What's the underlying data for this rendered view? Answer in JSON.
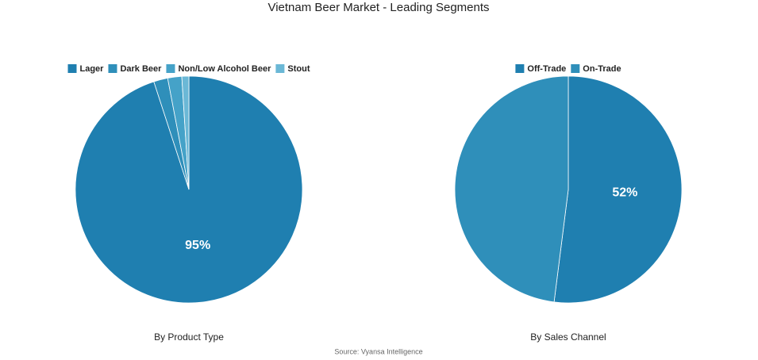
{
  "title": "Vietnam Beer Market - Leading Segments",
  "source": "Source: Vyansa Intelligence",
  "chart_data": [
    {
      "type": "pie",
      "caption": "By Product Type",
      "categories": [
        "Lager",
        "Dark Beer",
        "Non/Low Alcohol Beer",
        "Stout"
      ],
      "values": [
        95,
        2,
        2,
        1
      ],
      "value_labels": [
        "95%",
        null,
        null,
        null
      ],
      "colors": [
        "#1f7fb0",
        "#2f8fba",
        "#45a2c8",
        "#6bb8d6"
      ]
    },
    {
      "type": "pie",
      "caption": "By Sales Channel",
      "categories": [
        "Off-Trade",
        "On-Trade"
      ],
      "values": [
        52,
        48
      ],
      "value_labels": [
        "52%",
        null
      ],
      "colors": [
        "#1f7fb0",
        "#2f8fba"
      ]
    }
  ]
}
